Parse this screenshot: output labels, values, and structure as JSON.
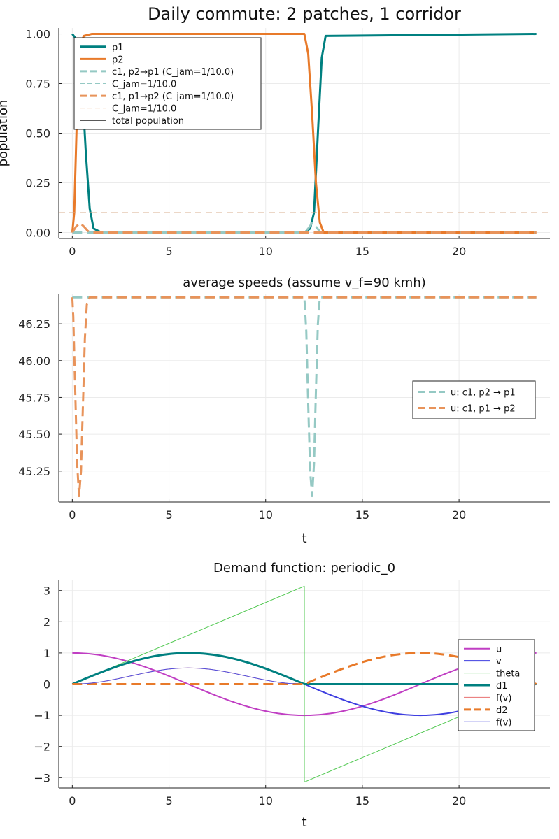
{
  "chart_data": [
    {
      "type": "line",
      "title": "Daily commute: 2 patches, 1 corridor",
      "xlabel": "",
      "ylabel": "population",
      "xlim": [
        -0.7,
        24.7
      ],
      "ylim": [
        -0.03,
        1.03
      ],
      "xticks": [
        0,
        5,
        10,
        15,
        20
      ],
      "xtick_labels": [
        "0",
        "5",
        "10",
        "15",
        "20"
      ],
      "yticks": [
        0,
        0.25,
        0.5,
        0.75,
        1.0
      ],
      "ytick_labels": [
        "0.00",
        "0.25",
        "0.50",
        "0.75",
        "1.00"
      ],
      "grid": true,
      "legend_position": "top-left",
      "series": [
        {
          "name": "p1",
          "color": "#008080",
          "width": 3,
          "dash": "solid",
          "x": [
            0,
            0.3,
            0.5,
            0.7,
            0.9,
            1.1,
            1.5,
            12.0,
            12.3,
            12.5,
            12.7,
            12.9,
            13.1,
            24
          ],
          "y": [
            1.0,
            0.96,
            0.75,
            0.4,
            0.12,
            0.02,
            0.0,
            0.0,
            0.02,
            0.1,
            0.5,
            0.88,
            0.99,
            1.0
          ]
        },
        {
          "name": "p2",
          "color": "#e87a2a",
          "width": 3,
          "dash": "solid",
          "x": [
            0,
            0.1,
            0.2,
            0.3,
            0.4,
            0.6,
            1.0,
            12.0,
            12.2,
            12.4,
            12.6,
            12.8,
            13.0,
            24
          ],
          "y": [
            0.0,
            0.1,
            0.45,
            0.8,
            0.95,
            0.99,
            1.0,
            1.0,
            0.9,
            0.6,
            0.25,
            0.05,
            0.0,
            0.0
          ]
        },
        {
          "name": "c1, p2→p1 (C_jam=1/10.0)",
          "color": "#95c9c4",
          "width": 3,
          "dash": "dash",
          "x": [
            0,
            12.0,
            12.2,
            12.4,
            12.6,
            12.8,
            13.0,
            24
          ],
          "y": [
            0.0,
            0.0,
            0.02,
            0.048,
            0.03,
            0.005,
            0.0,
            0.0
          ]
        },
        {
          "name": "C_jam=1/10.0",
          "color": "#95c9c4",
          "width": 1,
          "dash": "dash",
          "x": [
            -0.7,
            24.7
          ],
          "y": [
            0.1,
            0.1
          ]
        },
        {
          "name": "c1, p1→p2 (C_jam=1/10.0)",
          "color": "#e8935a",
          "width": 3,
          "dash": "dash",
          "x": [
            0,
            0.2,
            0.4,
            0.6,
            0.8,
            1.0,
            24
          ],
          "y": [
            0.0,
            0.03,
            0.048,
            0.03,
            0.008,
            0.0,
            0.0
          ]
        },
        {
          "name": "C_jam=1/10.0",
          "color": "#e8a27a",
          "width": 1,
          "dash": "dash",
          "x": [
            -0.7,
            24.7
          ],
          "y": [
            0.1,
            0.1
          ]
        },
        {
          "name": "total population",
          "color": "#222222",
          "width": 1,
          "dash": "solid",
          "x": [
            0,
            24
          ],
          "y": [
            1.0,
            1.0
          ]
        }
      ]
    },
    {
      "type": "line",
      "title": "average speeds (assume v_f=90 kmh)",
      "xlabel": "t",
      "ylabel": "",
      "xlim": [
        -0.7,
        24.7
      ],
      "ylim": [
        45.04,
        46.45
      ],
      "xticks": [
        0,
        5,
        10,
        15,
        20
      ],
      "xtick_labels": [
        "0",
        "5",
        "10",
        "15",
        "20"
      ],
      "yticks": [
        45.25,
        45.5,
        45.75,
        46.0,
        46.25
      ],
      "ytick_labels": [
        "45.25",
        "45.50",
        "45.75",
        "46.00",
        "46.25"
      ],
      "grid": true,
      "legend_position": "right",
      "series": [
        {
          "name": "u: c1, p2 → p1",
          "color": "#95c9c4",
          "width": 3,
          "dash": "dash",
          "x": [
            0,
            12.0,
            12.1,
            12.2,
            12.3,
            12.4,
            12.5,
            12.6,
            12.7,
            12.8,
            24
          ],
          "y": [
            46.43,
            46.43,
            46.2,
            45.7,
            45.25,
            45.08,
            45.3,
            45.8,
            46.25,
            46.43,
            46.43
          ]
        },
        {
          "name": "u: c1, p1 → p2",
          "color": "#e8935a",
          "width": 3,
          "dash": "dash",
          "x": [
            0,
            0.05,
            0.15,
            0.25,
            0.35,
            0.45,
            0.55,
            0.65,
            0.75,
            0.9,
            24
          ],
          "y": [
            46.43,
            46.3,
            45.8,
            45.3,
            45.08,
            45.25,
            45.7,
            46.15,
            46.38,
            46.43,
            46.43
          ]
        }
      ]
    },
    {
      "type": "line",
      "title": "Demand function: periodic_0",
      "xlabel": "t",
      "ylabel": "",
      "xlim": [
        -0.7,
        24.7
      ],
      "ylim": [
        -3.33,
        3.33
      ],
      "xticks": [
        0,
        5,
        10,
        15,
        20
      ],
      "xtick_labels": [
        "0",
        "5",
        "10",
        "15",
        "20"
      ],
      "yticks": [
        -3,
        -2,
        -1,
        0,
        1,
        2,
        3
      ],
      "ytick_labels": [
        "−3",
        "−2",
        "−1",
        "0",
        "1",
        "2",
        "3"
      ],
      "grid": true,
      "legend_position": "right",
      "series": [
        {
          "name": "u",
          "color": "#c03ec3",
          "width": 2,
          "dash": "solid",
          "fn": "u"
        },
        {
          "name": "v",
          "color": "#3e3ee0",
          "width": 2,
          "dash": "solid",
          "fn": "v"
        },
        {
          "name": "theta",
          "color": "#50c850",
          "width": 1,
          "dash": "solid",
          "fn": "theta"
        },
        {
          "name": "d1",
          "color": "#008080",
          "width": 3,
          "dash": "solid",
          "fn": "d1"
        },
        {
          "name": "f(v)",
          "color": "#e87070",
          "width": 1,
          "dash": "solid",
          "fn": "fv"
        },
        {
          "name": "d2",
          "color": "#e87a2a",
          "width": 3,
          "dash": "dash",
          "fn": "d2"
        },
        {
          "name": "f(v)",
          "color": "#5050e0",
          "width": 1,
          "dash": "solid",
          "fn": "fv2"
        }
      ]
    }
  ]
}
